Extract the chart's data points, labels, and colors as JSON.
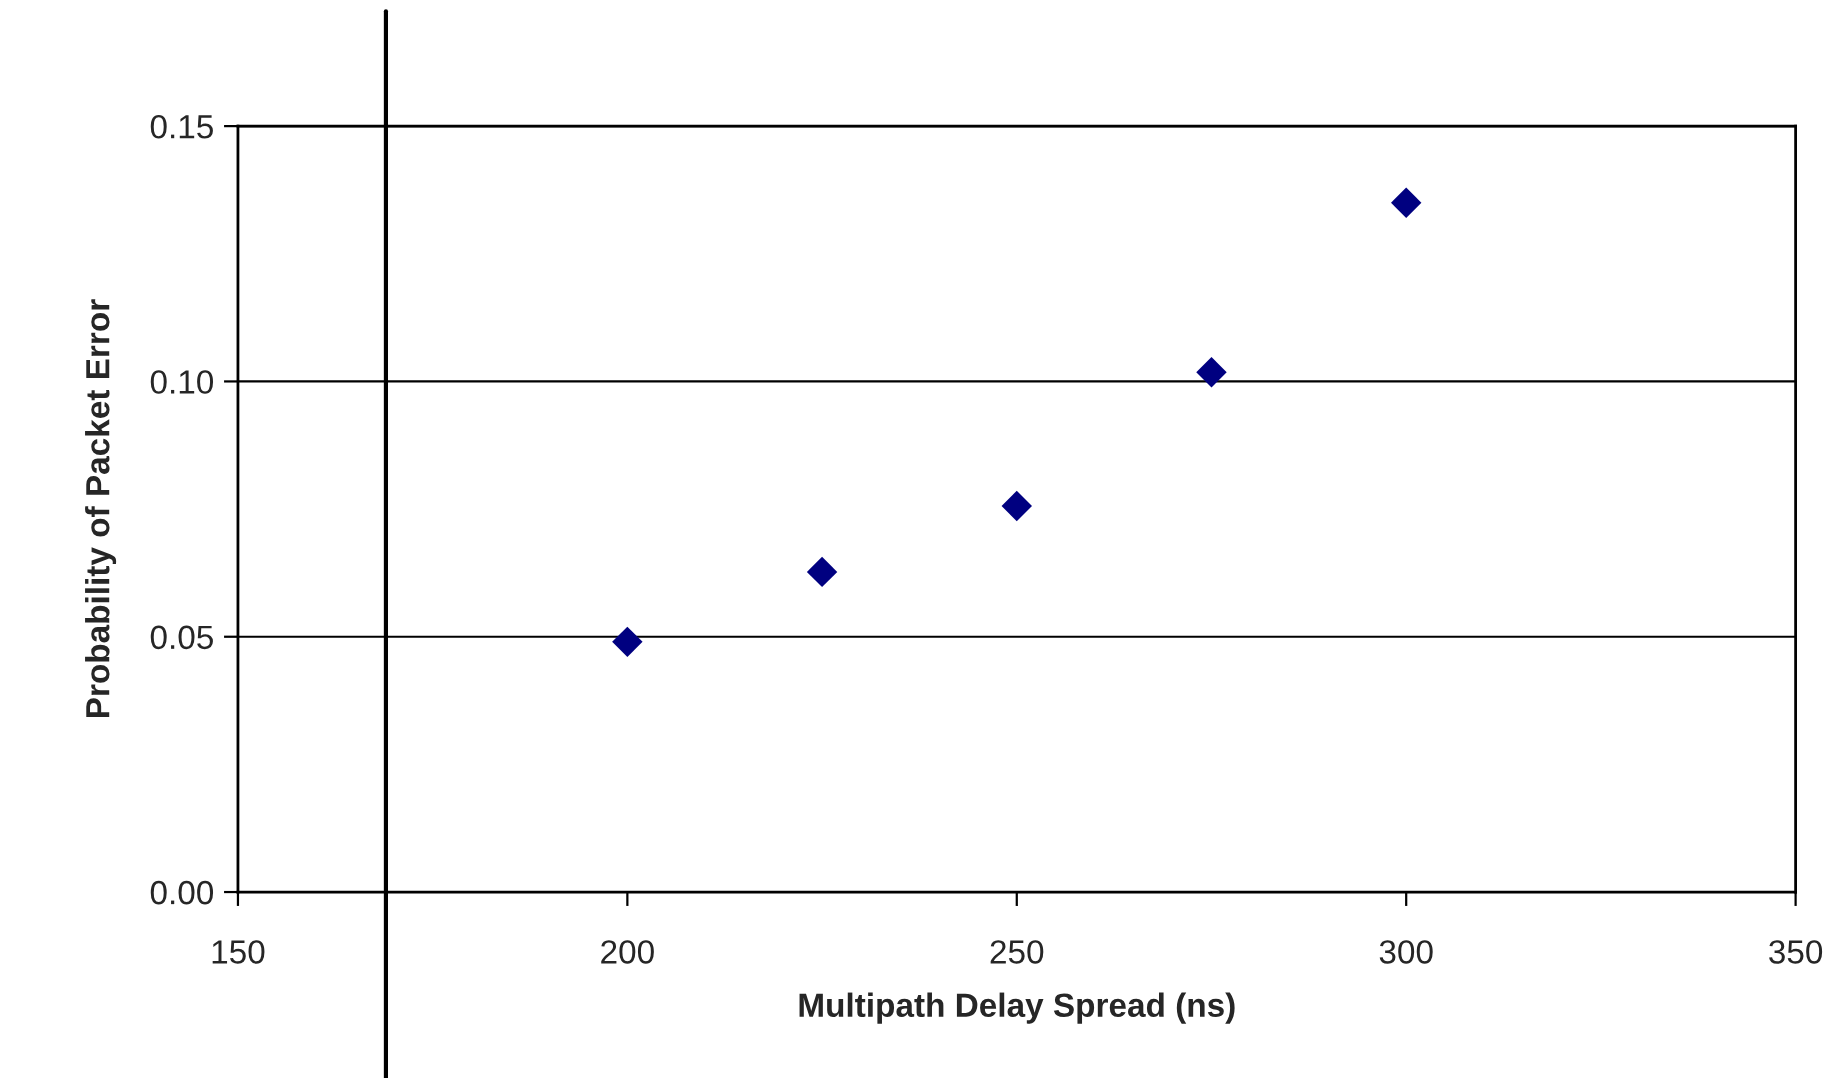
{
  "chart_data": {
    "type": "scatter",
    "xlabel": "Multipath Delay Spread (ns)",
    "ylabel": "Probability of Packet Error",
    "x": [
      200,
      225,
      250,
      275,
      300
    ],
    "series": [
      {
        "color": "#000080",
        "values": [
          0.049,
          0.0627,
          0.0756,
          0.1018,
          0.135
        ]
      }
    ],
    "xlim": [
      150,
      350
    ],
    "xticks": [
      150,
      200,
      250,
      300,
      350
    ],
    "ylim": [
      0,
      0.15
    ],
    "yticks": [
      {
        "value": 0,
        "label": "0.00"
      },
      {
        "value": 0.05,
        "label": "0.05"
      },
      {
        "value": 0.1,
        "label": "0.10"
      },
      {
        "value": 0.15,
        "label": "0.15"
      }
    ],
    "ref_lines": [
      {
        "axis": "x",
        "value": 169,
        "color": "#000000"
      }
    ],
    "grid": "y",
    "marker": "diamond",
    "legend": false
  }
}
